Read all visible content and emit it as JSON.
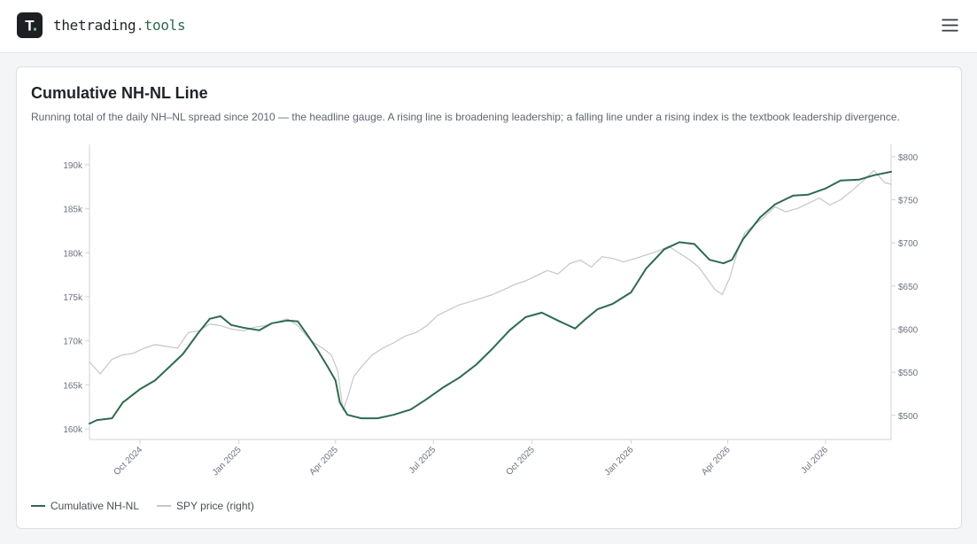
{
  "header": {
    "brand_part1": "thetrading",
    "brand_part2": ".tools",
    "logo_letter": "T",
    "menu_icon": "hamburger-menu-icon"
  },
  "card": {
    "title": "Cumulative NH-NL Line",
    "subtitle": "Running total of the daily NH–NL spread since 2010 — the headline gauge. A rising line is broadening leadership; a falling line under a rising index is the textbook leadership divergence."
  },
  "colors": {
    "nhnl": "#2f6a4f",
    "spy": "#c4c6c9",
    "brand_green": "#2f6a4f"
  },
  "chart_data": {
    "type": "line",
    "x_type": "date",
    "x_range": [
      "2024-08-15",
      "2026-08-31"
    ],
    "x_ticks": [
      {
        "date": "2024-10-01",
        "label": "Oct 2024"
      },
      {
        "date": "2025-01-01",
        "label": "Jan 2025"
      },
      {
        "date": "2025-04-01",
        "label": "Apr 2025"
      },
      {
        "date": "2025-07-01",
        "label": "Jul 2025"
      },
      {
        "date": "2025-10-01",
        "label": "Oct 2025"
      },
      {
        "date": "2026-01-01",
        "label": "Jan 2026"
      },
      {
        "date": "2026-04-01",
        "label": "Apr 2026"
      },
      {
        "date": "2026-07-01",
        "label": "Jul 2026"
      }
    ],
    "y_left": {
      "range": [
        158800,
        191500
      ],
      "ticks": [
        160000,
        165000,
        170000,
        175000,
        180000,
        185000,
        190000
      ],
      "tick_labels": [
        "160k",
        "165k",
        "170k",
        "175k",
        "180k",
        "185k",
        "190k"
      ]
    },
    "y_right": {
      "range": [
        472,
        806
      ],
      "ticks": [
        500,
        550,
        600,
        650,
        700,
        750,
        800
      ],
      "tick_labels": [
        "$500",
        "$550",
        "$600",
        "$650",
        "$700",
        "$750",
        "$800"
      ]
    },
    "grid": false,
    "legend_position": "bottom-left",
    "series": [
      {
        "name": "Cumulative NH-NL",
        "axis": "left",
        "color": "#2f6a4f",
        "x": [
          "2024-08-15",
          "2024-08-22",
          "2024-09-05",
          "2024-09-15",
          "2024-10-01",
          "2024-10-15",
          "2024-10-28",
          "2024-11-10",
          "2024-11-25",
          "2024-12-05",
          "2024-12-15",
          "2024-12-25",
          "2025-01-05",
          "2025-01-20",
          "2025-02-01",
          "2025-02-15",
          "2025-02-25",
          "2025-03-05",
          "2025-03-15",
          "2025-03-25",
          "2025-04-01",
          "2025-04-05",
          "2025-04-12",
          "2025-04-25",
          "2025-05-10",
          "2025-05-25",
          "2025-06-10",
          "2025-06-25",
          "2025-07-10",
          "2025-07-25",
          "2025-08-10",
          "2025-08-25",
          "2025-09-10",
          "2025-09-25",
          "2025-10-10",
          "2025-10-25",
          "2025-11-10",
          "2025-11-20",
          "2025-12-01",
          "2025-12-15",
          "2026-01-01",
          "2026-01-15",
          "2026-02-01",
          "2026-02-15",
          "2026-03-01",
          "2026-03-15",
          "2026-03-28",
          "2026-04-05",
          "2026-04-15",
          "2026-05-01",
          "2026-05-15",
          "2026-06-01",
          "2026-06-15",
          "2026-07-01",
          "2026-07-15",
          "2026-08-01",
          "2026-08-15",
          "2026-08-31"
        ],
        "y": [
          160600,
          161000,
          161200,
          163000,
          164500,
          165500,
          167000,
          168500,
          171000,
          172500,
          172800,
          171800,
          171500,
          171200,
          172000,
          172300,
          172200,
          170800,
          169000,
          167000,
          165500,
          163000,
          161600,
          161200,
          161200,
          161600,
          162200,
          163400,
          164700,
          165800,
          167300,
          169100,
          171200,
          172700,
          173200,
          172300,
          171400,
          172500,
          173600,
          174200,
          175500,
          178200,
          180400,
          181200,
          181000,
          179200,
          178800,
          179200,
          181500,
          184000,
          185500,
          186500,
          186600,
          187300,
          188200,
          188300,
          188800,
          189200
        ]
      },
      {
        "name": "SPY price (right)",
        "axis": "right",
        "color": "#c4c6c9",
        "x": [
          "2024-08-15",
          "2024-08-25",
          "2024-09-05",
          "2024-09-15",
          "2024-09-25",
          "2024-10-05",
          "2024-10-15",
          "2024-10-25",
          "2024-11-05",
          "2024-11-15",
          "2024-11-25",
          "2024-12-05",
          "2024-12-15",
          "2024-12-25",
          "2025-01-05",
          "2025-01-15",
          "2025-01-25",
          "2025-02-05",
          "2025-02-15",
          "2025-02-25",
          "2025-03-05",
          "2025-03-12",
          "2025-03-20",
          "2025-03-28",
          "2025-04-03",
          "2025-04-08",
          "2025-04-12",
          "2025-04-18",
          "2025-04-25",
          "2025-05-05",
          "2025-05-15",
          "2025-05-25",
          "2025-06-05",
          "2025-06-15",
          "2025-06-25",
          "2025-07-05",
          "2025-07-15",
          "2025-07-25",
          "2025-08-05",
          "2025-08-15",
          "2025-08-25",
          "2025-09-05",
          "2025-09-15",
          "2025-09-25",
          "2025-10-05",
          "2025-10-15",
          "2025-10-25",
          "2025-11-05",
          "2025-11-15",
          "2025-11-25",
          "2025-12-05",
          "2025-12-15",
          "2025-12-25",
          "2026-01-05",
          "2026-01-15",
          "2026-01-25",
          "2026-02-05",
          "2026-02-15",
          "2026-02-25",
          "2026-03-05",
          "2026-03-12",
          "2026-03-20",
          "2026-03-27",
          "2026-04-03",
          "2026-04-10",
          "2026-04-17",
          "2026-04-25",
          "2026-05-05",
          "2026-05-15",
          "2026-05-25",
          "2026-06-05",
          "2026-06-15",
          "2026-06-25",
          "2026-07-05",
          "2026-07-15",
          "2026-07-25",
          "2026-08-05",
          "2026-08-15",
          "2026-08-25",
          "2026-08-31"
        ],
        "y": [
          562,
          548,
          565,
          570,
          572,
          578,
          582,
          580,
          578,
          596,
          598,
          606,
          604,
          600,
          598,
          602,
          604,
          608,
          612,
          604,
          592,
          584,
          578,
          570,
          552,
          506,
          520,
          545,
          556,
          570,
          578,
          584,
          592,
          596,
          604,
          616,
          622,
          628,
          632,
          636,
          640,
          646,
          652,
          656,
          662,
          668,
          664,
          676,
          680,
          672,
          684,
          682,
          678,
          682,
          686,
          690,
          696,
          688,
          680,
          672,
          660,
          646,
          640,
          660,
          690,
          712,
          720,
          730,
          742,
          736,
          740,
          746,
          752,
          744,
          750,
          760,
          772,
          784,
          770,
          768
        ]
      }
    ]
  },
  "legend": {
    "items": [
      {
        "label": "Cumulative NH-NL"
      },
      {
        "label": "SPY price (right)"
      }
    ]
  }
}
